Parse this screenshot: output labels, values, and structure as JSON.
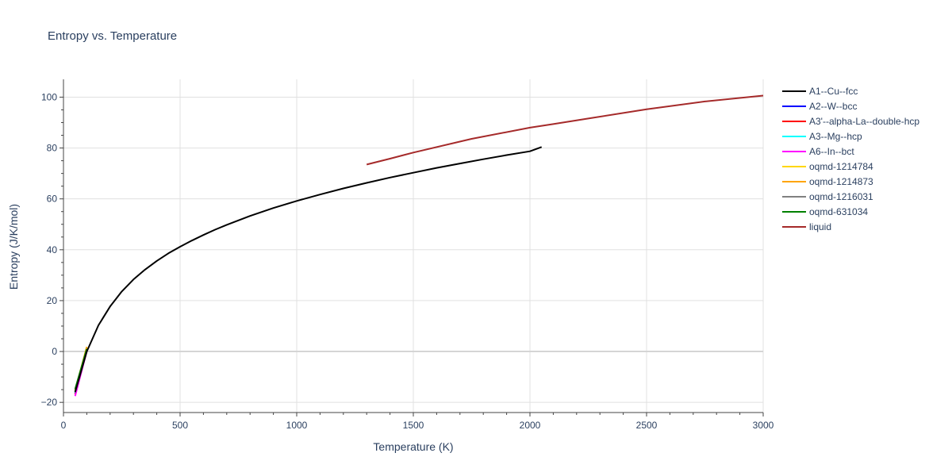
{
  "chart_data": {
    "type": "line",
    "title": "Entropy vs. Temperature",
    "xlabel": "Temperature (K)",
    "ylabel": "Entropy (J/K/mol)",
    "xlim": [
      0,
      3000
    ],
    "ylim": [
      -24,
      107
    ],
    "xticks": [
      0,
      500,
      1000,
      1500,
      2000,
      2500,
      3000
    ],
    "yticks": [
      -20,
      0,
      20,
      40,
      60,
      80,
      100
    ],
    "grid": true,
    "legend_position": "right",
    "series": [
      {
        "name": "A1--Cu--fcc",
        "color": "#000000",
        "x": [
          50,
          100,
          150,
          200,
          250,
          300,
          350,
          400,
          450,
          500,
          550,
          600,
          650,
          700,
          800,
          900,
          1000,
          1100,
          1200,
          1300,
          1400,
          1500,
          1600,
          1700,
          1800,
          1900,
          2000,
          2050
        ],
        "y": [
          -16,
          0,
          10.3,
          17.7,
          23.6,
          28.3,
          32.2,
          35.6,
          38.6,
          41.2,
          43.6,
          45.8,
          47.9,
          49.8,
          53.3,
          56.4,
          59.2,
          61.7,
          64.1,
          66.3,
          68.4,
          70.3,
          72.2,
          73.9,
          75.6,
          77.2,
          78.7,
          80.4
        ]
      },
      {
        "name": "A2--W--bcc",
        "color": "#0000ff",
        "x": [
          50,
          100
        ],
        "y": [
          -16.5,
          0.5
        ]
      },
      {
        "name": "A3'--alpha-La--double-hcp",
        "color": "#ff0000",
        "x": [
          50,
          100
        ],
        "y": [
          -16.8,
          0.3
        ]
      },
      {
        "name": "A3--Mg--hcp",
        "color": "#00ffff",
        "x": [
          50,
          100
        ],
        "y": [
          -16.3,
          0.6
        ]
      },
      {
        "name": "A6--In--bct",
        "color": "#ff00ff",
        "x": [
          50,
          100
        ],
        "y": [
          -17.5,
          0.2
        ]
      },
      {
        "name": "oqmd-1214784",
        "color": "#ffd700",
        "x": [
          50,
          100
        ],
        "y": [
          -15.2,
          1.5
        ]
      },
      {
        "name": "oqmd-1214873",
        "color": "#ffa500",
        "x": [
          50,
          100
        ],
        "y": [
          -15.5,
          1.8
        ]
      },
      {
        "name": "oqmd-1216031",
        "color": "#808080",
        "x": [
          50,
          100
        ],
        "y": [
          -15.8,
          0.8
        ]
      },
      {
        "name": "oqmd-631034",
        "color": "#008000",
        "x": [
          50,
          100
        ],
        "y": [
          -14.8,
          1.0
        ]
      },
      {
        "name": "liquid",
        "color": "#a52a2a",
        "x": [
          1300,
          1400,
          1500,
          1750,
          2000,
          2100,
          2250,
          2500,
          2750,
          3000
        ],
        "y": [
          73.5,
          75.8,
          78.2,
          83.6,
          88.0,
          89.4,
          91.6,
          95.2,
          98.3,
          100.6
        ]
      }
    ]
  }
}
